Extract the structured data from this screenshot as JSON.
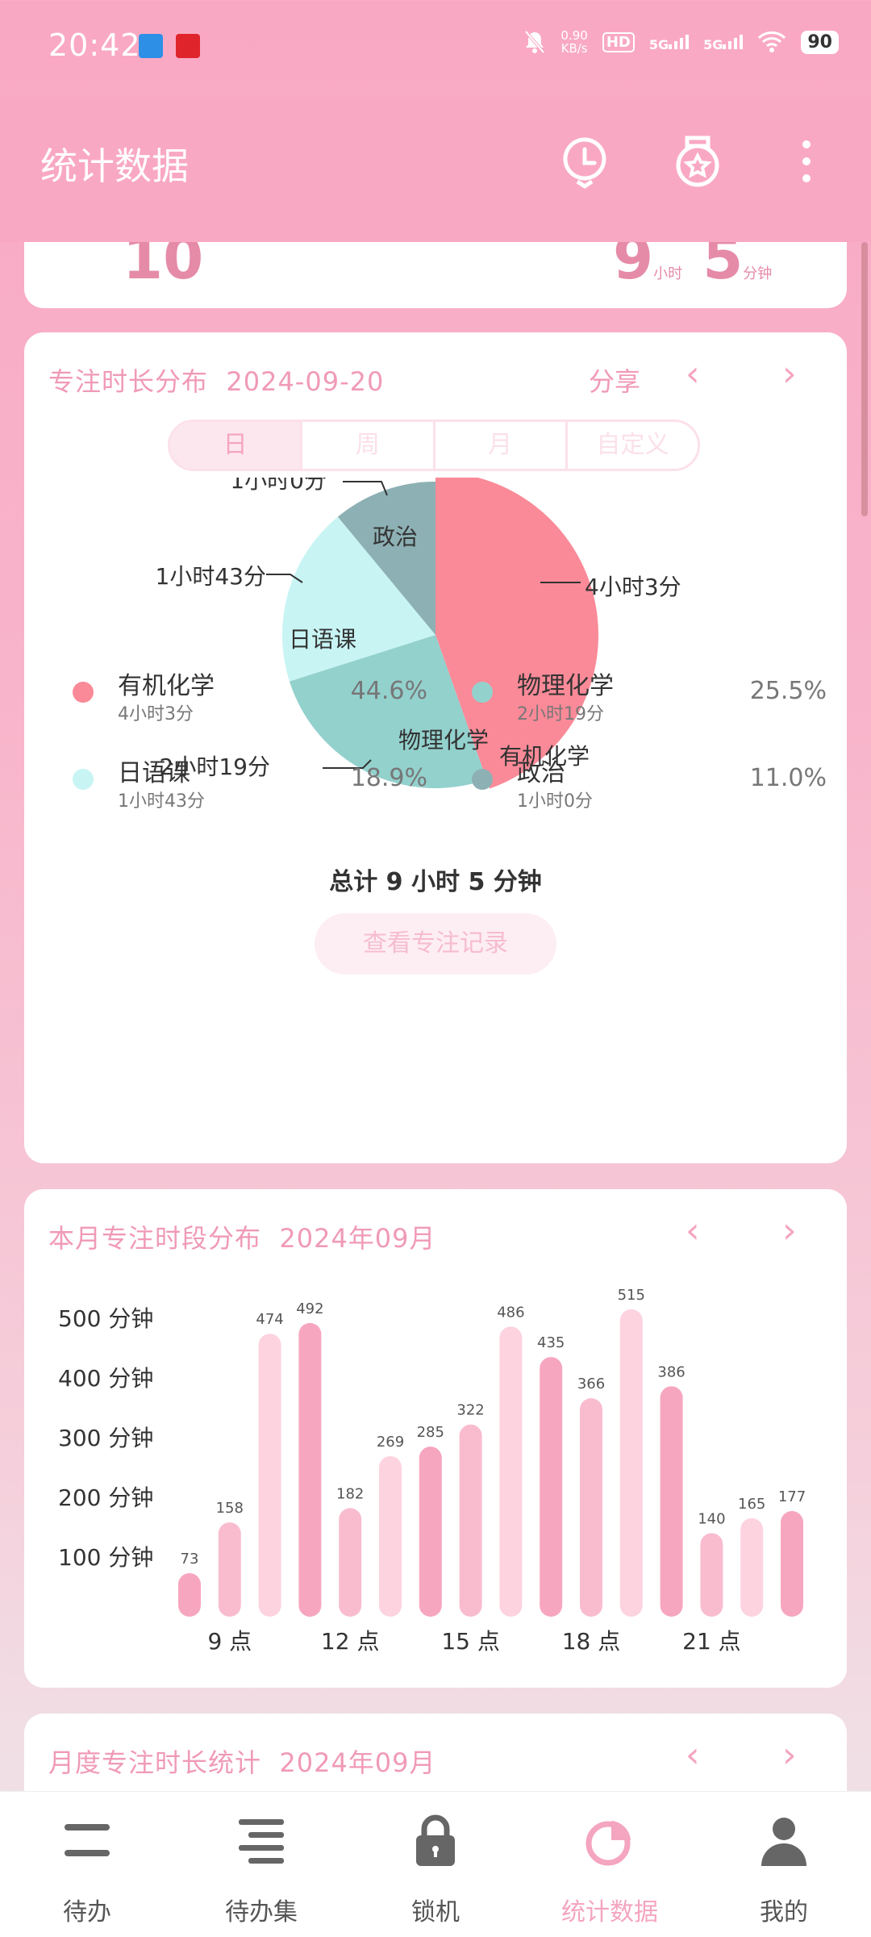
{
  "status_bar": {
    "time": "20:42",
    "net_speed_value": "0.90",
    "net_speed_unit": "KB/s",
    "hd": "HD",
    "sig1": "5G",
    "sig2": "5G",
    "battery": "90"
  },
  "appbar": {
    "title": "统计数据",
    "icons": [
      "clock-icon",
      "medal-icon",
      "more-vert-icon"
    ]
  },
  "summary": {
    "count": "10",
    "hours": "9",
    "hours_unit": "小时",
    "minutes": "5",
    "minutes_unit": "分钟"
  },
  "distribution": {
    "title": "专注时长分布",
    "date": "2024-09-20",
    "share": "分享",
    "tabs": [
      "日",
      "周",
      "月",
      "自定义"
    ],
    "active_tab": 0,
    "total": "总计 9 小时 5 分钟",
    "view_button": "查看专注记录",
    "subjects": [
      {
        "name": "有机化学",
        "time": "4小时3分",
        "pct": "44.6%",
        "color": "#fa8a98"
      },
      {
        "name": "物理化学",
        "time": "2小时19分",
        "pct": "25.5%",
        "color": "#93d1cd"
      },
      {
        "name": "日语课",
        "time": "1小时43分",
        "pct": "18.9%",
        "color": "#c8f4f4"
      },
      {
        "name": "政治",
        "time": "1小时0分",
        "pct": "11.0%",
        "color": "#8db0b4"
      }
    ]
  },
  "hourly": {
    "title": "本月专注时段分布",
    "date": "2024年09月"
  },
  "chart_data": {
    "type": "bar",
    "categories": [
      "8",
      "9",
      "10",
      "11",
      "12",
      "13",
      "14",
      "15",
      "16",
      "17",
      "18",
      "19",
      "20",
      "21",
      "22",
      "23"
    ],
    "values": [
      73,
      158,
      474,
      492,
      182,
      269,
      285,
      322,
      486,
      435,
      366,
      515,
      386,
      140,
      165,
      177
    ],
    "tick_labels": [
      {
        "label": "9 点",
        "index": 1
      },
      {
        "label": "12 点",
        "index": 4
      },
      {
        "label": "15 点",
        "index": 7
      },
      {
        "label": "18 点",
        "index": 10
      },
      {
        "label": "21 点",
        "index": 13
      }
    ],
    "y_ticks": [
      {
        "value": 100,
        "label": "100 分钟"
      },
      {
        "value": 200,
        "label": "200 分钟"
      },
      {
        "value": 300,
        "label": "300 分钟"
      },
      {
        "value": 400,
        "label": "400 分钟"
      },
      {
        "value": 500,
        "label": "500 分钟"
      }
    ],
    "ylim": [
      0,
      550
    ],
    "bar_colors": [
      "#f7a6bf",
      "#f9bccf",
      "#fdd3df"
    ],
    "grid": false
  },
  "monthly": {
    "title": "月度专注时长统计",
    "date": "2024年09月"
  },
  "bottom_nav": [
    {
      "label": "待办",
      "icon": "todo-icon"
    },
    {
      "label": "待办集",
      "icon": "todo-set-icon"
    },
    {
      "label": "锁机",
      "icon": "lock-icon"
    },
    {
      "label": "统计数据",
      "icon": "pie-chart-icon"
    },
    {
      "label": "我的",
      "icon": "profile-icon"
    }
  ],
  "active_nav": 3
}
